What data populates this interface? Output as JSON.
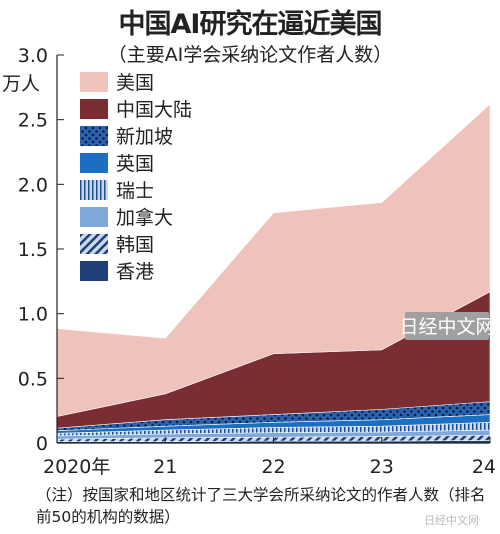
{
  "title": "中国AI研究在逼近美国",
  "subtitle": "（主要AI学会采纳论文作者人数）",
  "note": "（注）按国家和地区统计了三大学会所采纳论文的作者人数（排名前50的机构的数据）",
  "watermark_logo": "日经中文网",
  "watermark_corner": "日经中文网",
  "chart_data": {
    "type": "area",
    "stacked": true,
    "x": [
      "2020年",
      "21",
      "22",
      "23",
      "24"
    ],
    "ylim": [
      0,
      3.0
    ],
    "yticks": [
      0,
      0.5,
      1.0,
      1.5,
      2.0,
      2.5,
      3.0
    ],
    "ytick_labels": [
      "0",
      "0.5",
      "1.0",
      "1.5",
      "2.0",
      "2.5",
      "3.0"
    ],
    "ylabel": "万人",
    "series": [
      {
        "name": "香港",
        "color": "#1f3f78",
        "pattern": "solid",
        "values": [
          0.01,
          0.01,
          0.015,
          0.015,
          0.02
        ]
      },
      {
        "name": "韩国",
        "color": "#1f4e8c",
        "pattern": "diag",
        "values": [
          0.02,
          0.03,
          0.03,
          0.035,
          0.04
        ]
      },
      {
        "name": "加拿大",
        "color": "#7ea9d9",
        "pattern": "solid",
        "values": [
          0.025,
          0.03,
          0.035,
          0.035,
          0.04
        ]
      },
      {
        "name": "瑞士",
        "color": "#c9d8ee",
        "pattern": "vlines",
        "values": [
          0.02,
          0.03,
          0.04,
          0.045,
          0.06
        ]
      },
      {
        "name": "英国",
        "color": "#1a6fc0",
        "pattern": "solid",
        "values": [
          0.02,
          0.03,
          0.04,
          0.05,
          0.06
        ]
      },
      {
        "name": "新加坡",
        "color": "#2a64b0",
        "pattern": "dots",
        "values": [
          0.02,
          0.05,
          0.06,
          0.08,
          0.1
        ]
      },
      {
        "name": "中国大陆",
        "color": "#7a2e34",
        "pattern": "solid",
        "values": [
          0.09,
          0.2,
          0.47,
          0.46,
          0.85
        ]
      },
      {
        "name": "美国",
        "color": "#efc2bb",
        "pattern": "solid",
        "values": [
          0.68,
          0.43,
          1.09,
          1.14,
          1.45
        ]
      }
    ],
    "legend": {
      "placement": "top-left",
      "order": [
        "美国",
        "中国大陆",
        "新加坡",
        "英国",
        "瑞士",
        "加拿大",
        "韩国",
        "香港"
      ]
    },
    "grid": false
  }
}
